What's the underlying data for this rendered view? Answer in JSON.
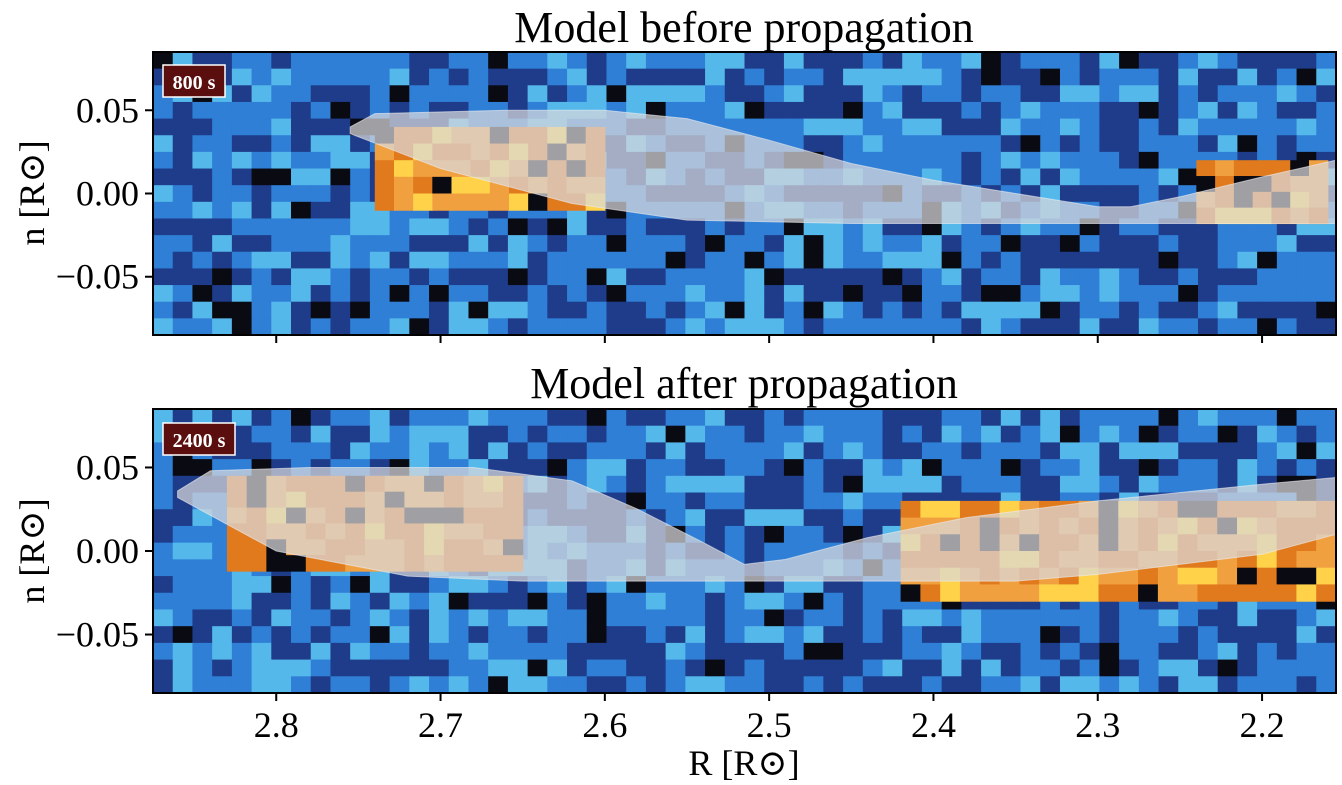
{
  "chart_data": [
    {
      "type": "heatmap",
      "title": "Model before propagation",
      "time_label": "800 s",
      "xlabel": "R [R⊙]",
      "ylabel": "n [R⊙]",
      "xlim": [
        2.875,
        2.155
      ],
      "ylim": [
        -0.085,
        0.085
      ],
      "x_inverted": true,
      "xticks": [
        2.8,
        2.7,
        2.6,
        2.5,
        2.4,
        2.3,
        2.2
      ],
      "xtick_labels": [
        "2.8",
        "2.7",
        "2.6",
        "2.5",
        "2.4",
        "2.3",
        "2.2"
      ],
      "yticks": [
        0.05,
        0.0,
        -0.05
      ],
      "ytick_labels": [
        "0.05",
        "0.00",
        "−0.05"
      ],
      "show_xtick_labels": false,
      "colormap": [
        "#0a0a12",
        "#1e3c8a",
        "#2f7fd6",
        "#55b8ea",
        "#fff3c8",
        "#e07a1c",
        "#ffd24a"
      ],
      "model_overlay": {
        "description_color": "#d8d8dc",
        "upper_edge": [
          [
            2.755,
            0.04
          ],
          [
            2.74,
            0.048
          ],
          [
            2.66,
            0.05
          ],
          [
            2.6,
            0.05
          ],
          [
            2.55,
            0.045
          ],
          [
            2.5,
            0.032
          ],
          [
            2.45,
            0.018
          ],
          [
            2.4,
            0.008
          ],
          [
            2.35,
            0.0
          ],
          [
            2.3,
            -0.008
          ],
          [
            2.28,
            -0.008
          ],
          [
            2.25,
            -0.002
          ],
          [
            2.2,
            0.01
          ],
          [
            2.155,
            0.02
          ]
        ],
        "lower_edge": [
          [
            2.155,
            -0.018
          ],
          [
            2.3,
            -0.018
          ],
          [
            2.45,
            -0.018
          ],
          [
            2.55,
            -0.016
          ],
          [
            2.62,
            -0.006
          ],
          [
            2.7,
            0.015
          ],
          [
            2.755,
            0.036
          ]
        ]
      },
      "bright_feature": {
        "color": "#f1a040",
        "regions": [
          {
            "x": [
              2.74,
              2.6
            ],
            "y": [
              -0.01,
              0.04
            ]
          },
          {
            "x": [
              2.24,
              2.16
            ],
            "y": [
              -0.018,
              0.02
            ]
          }
        ]
      }
    },
    {
      "type": "heatmap",
      "title": "Model after propagation",
      "time_label": "2400 s",
      "xlabel": "R [R⊙]",
      "ylabel": "n [R⊙]",
      "xlim": [
        2.875,
        2.155
      ],
      "ylim": [
        -0.085,
        0.085
      ],
      "x_inverted": true,
      "xticks": [
        2.8,
        2.7,
        2.6,
        2.5,
        2.4,
        2.3,
        2.2
      ],
      "xtick_labels": [
        "2.8",
        "2.7",
        "2.6",
        "2.5",
        "2.4",
        "2.3",
        "2.2"
      ],
      "yticks": [
        0.05,
        0.0,
        -0.05
      ],
      "ytick_labels": [
        "0.05",
        "0.00",
        "−0.05"
      ],
      "show_xtick_labels": true,
      "colormap": [
        "#0a0a12",
        "#1e3c8a",
        "#2f7fd6",
        "#55b8ea",
        "#fff3c8",
        "#e07a1c",
        "#ffd24a"
      ],
      "model_overlay": {
        "description_color": "#d8d8dc",
        "upper_edge": [
          [
            2.86,
            0.036
          ],
          [
            2.84,
            0.048
          ],
          [
            2.78,
            0.05
          ],
          [
            2.68,
            0.05
          ],
          [
            2.62,
            0.042
          ],
          [
            2.58,
            0.025
          ],
          [
            2.54,
            0.005
          ],
          [
            2.515,
            -0.008
          ],
          [
            2.49,
            -0.005
          ],
          [
            2.44,
            0.008
          ],
          [
            2.38,
            0.02
          ],
          [
            2.3,
            0.03
          ],
          [
            2.2,
            0.04
          ],
          [
            2.155,
            0.044
          ]
        ],
        "lower_edge": [
          [
            2.155,
            0.01
          ],
          [
            2.2,
            -0.002
          ],
          [
            2.3,
            -0.014
          ],
          [
            2.35,
            -0.018
          ],
          [
            2.5,
            -0.018
          ],
          [
            2.65,
            -0.018
          ],
          [
            2.72,
            -0.015
          ],
          [
            2.8,
            0.0
          ],
          [
            2.86,
            0.032
          ]
        ]
      },
      "bright_feature": {
        "color": "#f1a040",
        "regions": [
          {
            "x": [
              2.83,
              2.65
            ],
            "y": [
              -0.012,
              0.045
            ]
          },
          {
            "x": [
              2.42,
              2.155
            ],
            "y": [
              -0.03,
              0.03
            ]
          }
        ]
      }
    }
  ]
}
